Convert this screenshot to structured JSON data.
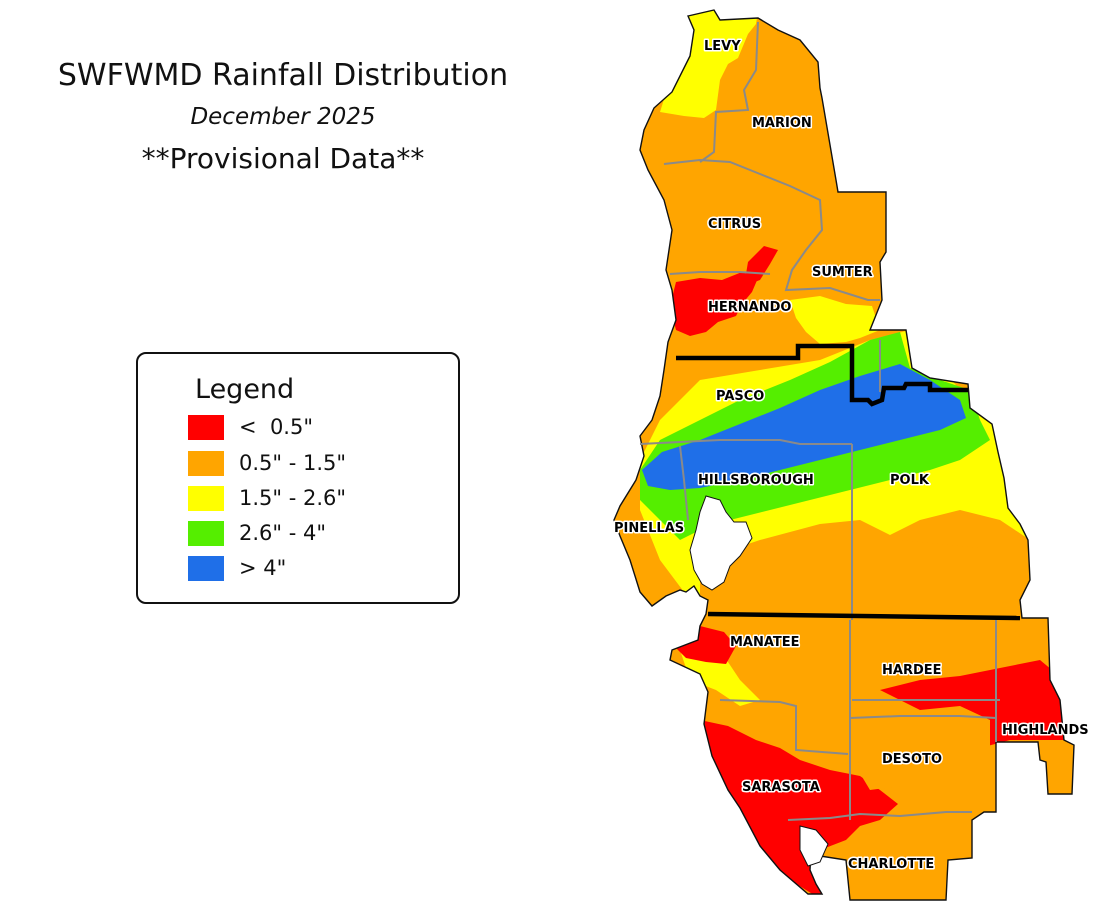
{
  "title": "SWFWMD Rainfall Distribution",
  "subtitle": "December 2025",
  "provisional": "**Provisional Data**",
  "legend": {
    "title": "Legend",
    "items": [
      {
        "label": "<  0.5\"",
        "color": "#ff0000"
      },
      {
        "label": "0.5\" - 1.5\"",
        "color": "#ffa500"
      },
      {
        "label": "1.5\" - 2.6\"",
        "color": "#ffff00"
      },
      {
        "label": "2.6\" - 4\"",
        "color": "#55ee00"
      },
      {
        "label": "> 4\"",
        "color": "#1f6fe8"
      }
    ]
  },
  "counties": [
    "LEVY",
    "MARION",
    "CITRUS",
    "SUMTER",
    "HERNANDO",
    "PASCO",
    "HILLSBOROUGH",
    "POLK",
    "PINELLAS",
    "MANATEE",
    "HARDEE",
    "HIGHLANDS",
    "DESOTO",
    "SARASOTA",
    "CHARLOTTE"
  ]
}
